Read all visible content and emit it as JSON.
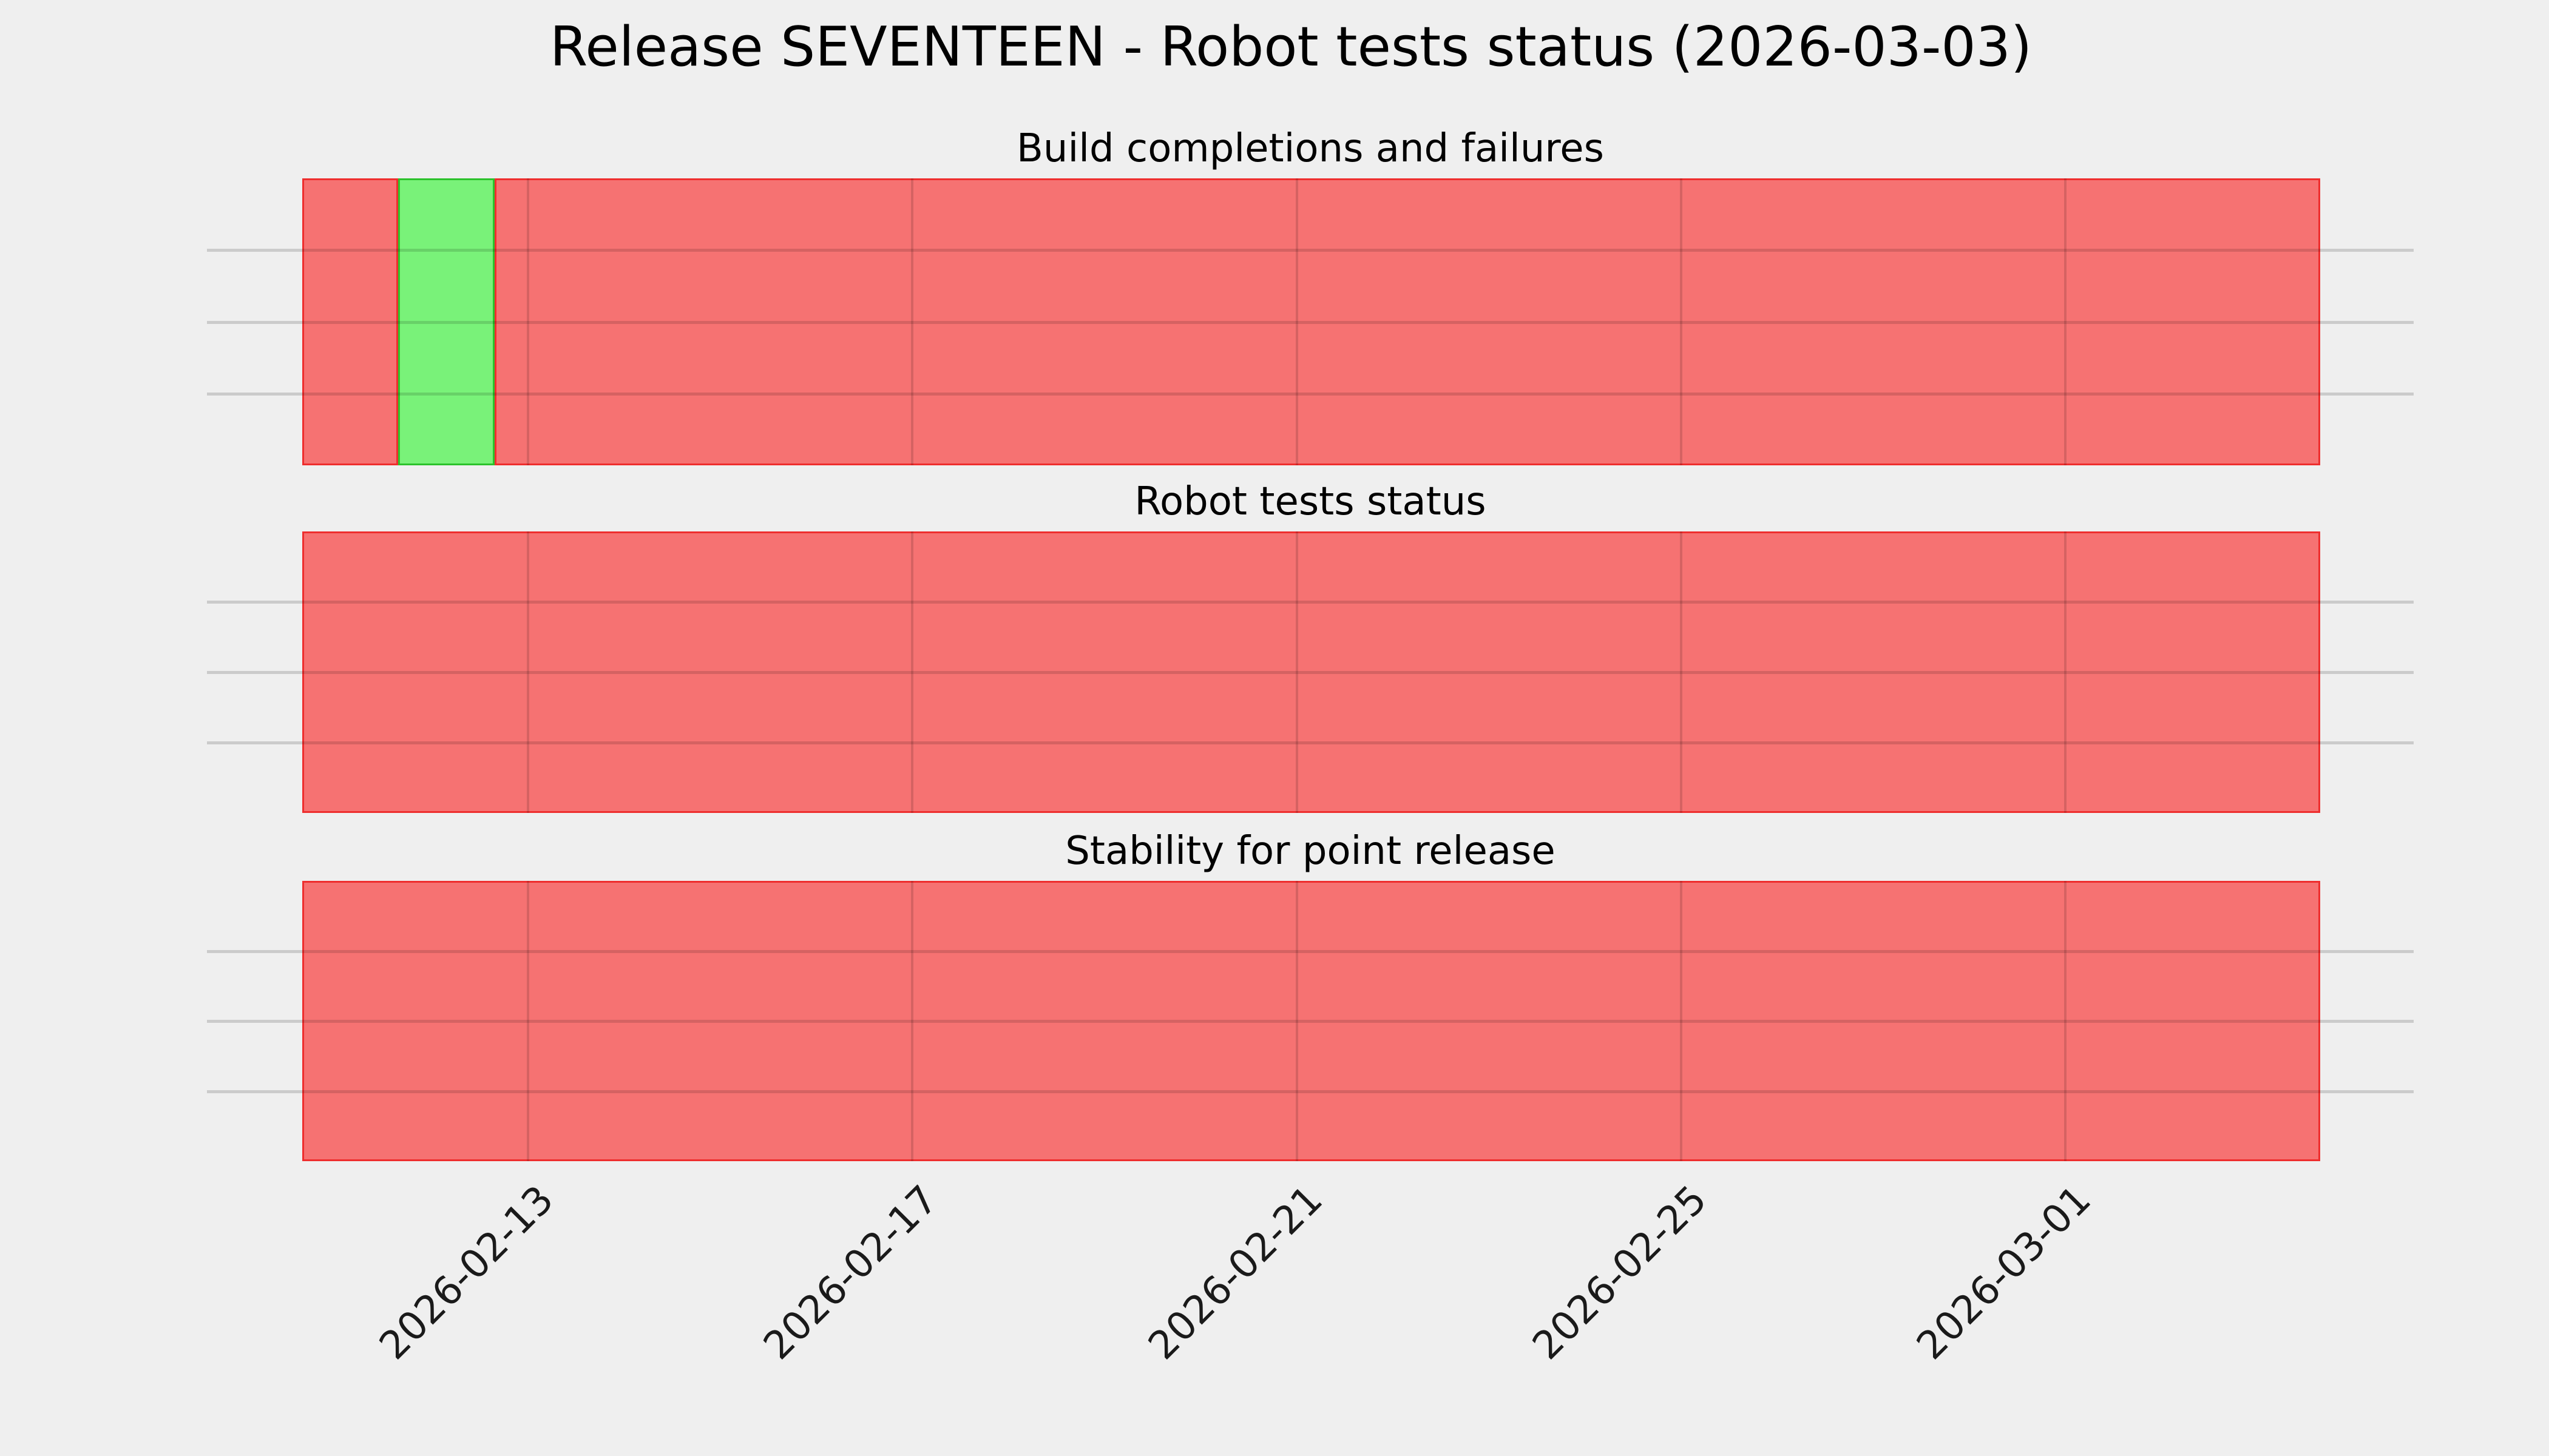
{
  "figure": {
    "title": "Release SEVENTEEN - Robot tests status (2026-03-03)",
    "background_color": "#efefef",
    "grid_color": "#cbcbcb",
    "text_color": "#000000"
  },
  "colors": {
    "fail_fill": "#f67272",
    "fail_edge": "#ed2a2a",
    "pass_fill": "#79f279",
    "pass_edge": "#28bf28"
  },
  "chart_data": {
    "type": "bar",
    "subtype": "status-timeline",
    "x_start": "2026-02-11",
    "x_end": "2026-03-03",
    "bar_width_days": 1,
    "grid": "on",
    "legend_position": "none",
    "y_tick_labels": [],
    "x_ticks": [
      "2026-02-13",
      "2026-02-17",
      "2026-02-21",
      "2026-02-25",
      "2026-03-01"
    ],
    "panels": [
      {
        "title": "Build completions and failures",
        "segments": [
          {
            "from": "2026-02-11",
            "to": "2026-02-11",
            "status": "fail"
          },
          {
            "from": "2026-02-12",
            "to": "2026-02-12",
            "status": "pass"
          },
          {
            "from": "2026-02-13",
            "to": "2026-03-03",
            "status": "fail"
          }
        ]
      },
      {
        "title": "Robot tests status",
        "segments": [
          {
            "from": "2026-02-11",
            "to": "2026-03-03",
            "status": "fail"
          }
        ]
      },
      {
        "title": "Stability for point release",
        "segments": [
          {
            "from": "2026-02-11",
            "to": "2026-03-03",
            "status": "fail"
          }
        ]
      }
    ]
  }
}
